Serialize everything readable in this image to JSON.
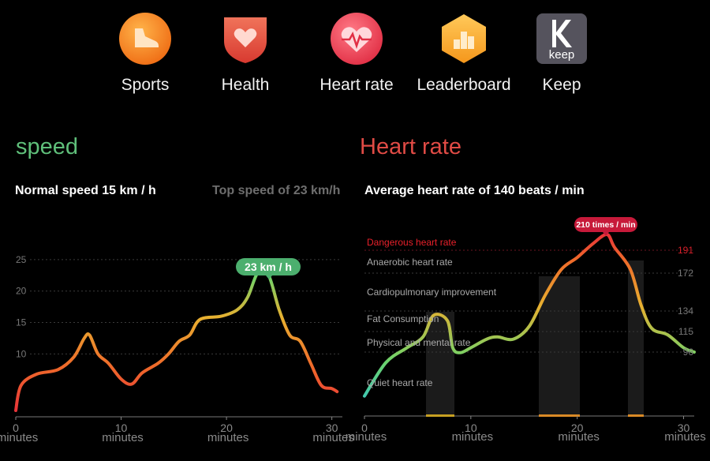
{
  "apps": [
    {
      "label": "Sports",
      "icon": "shoe-icon"
    },
    {
      "label": "Health",
      "icon": "heart-shield-icon"
    },
    {
      "label": "Heart rate",
      "icon": "heartbeat-icon"
    },
    {
      "label": "Leaderboard",
      "icon": "podium-icon"
    },
    {
      "label": "Keep",
      "icon": "keep-logo-icon",
      "logo_text": "keep"
    }
  ],
  "speed": {
    "title": "speed",
    "normal": "Normal speed 15 km / h",
    "top": "Top speed of 23 km/h",
    "badge": "23 km / h",
    "color": "#5fbf7a"
  },
  "heart": {
    "title": "Heart rate",
    "average": "Average heart rate of 140 beats / min",
    "badge": "210 times / min",
    "color": "#e04b45",
    "zones": [
      "Dangerous heart rate",
      "Anaerobic heart rate",
      "Cardiopulmonary improvement",
      "Fat Consumption",
      "Physical and mental rate",
      "Quiet heart rate"
    ]
  },
  "chart_data": [
    {
      "type": "line",
      "title": "speed",
      "x_ticks": [
        "0",
        "10",
        "20",
        "30"
      ],
      "x_unit": "minutes",
      "y_ticks": [
        "10",
        "15",
        "20",
        "25"
      ],
      "ylim": [
        0,
        27
      ],
      "xlim": [
        0,
        31
      ],
      "series": [
        {
          "values": [
            [
              0,
              1
            ],
            [
              0.5,
              5
            ],
            [
              2,
              6.8
            ],
            [
              4,
              7.5
            ],
            [
              5.5,
              9.5
            ],
            [
              6.5,
              12.5
            ],
            [
              7,
              13
            ],
            [
              7.8,
              10
            ],
            [
              8.8,
              8.5
            ],
            [
              10,
              6
            ],
            [
              11,
              5.2
            ],
            [
              12,
              7
            ],
            [
              13.5,
              8.5
            ],
            [
              14.5,
              10
            ],
            [
              15.5,
              12
            ],
            [
              16.5,
              13
            ],
            [
              17.5,
              15.5
            ],
            [
              19.5,
              16
            ],
            [
              21,
              17
            ],
            [
              22,
              19
            ],
            [
              23,
              23
            ],
            [
              24,
              22.5
            ],
            [
              25,
              17
            ],
            [
              26,
              13
            ],
            [
              27,
              12
            ],
            [
              28,
              8.5
            ],
            [
              29,
              5
            ],
            [
              30,
              4.5
            ],
            [
              30.5,
              4
            ]
          ]
        }
      ]
    },
    {
      "type": "line",
      "title": "Heart rate",
      "x_ticks": [
        "0",
        "10",
        "20",
        "30"
      ],
      "x_unit": "minutes",
      "y_ticks": [
        "96",
        "115",
        "134",
        "172",
        "191"
      ],
      "series": [
        {
          "values": [
            [
              0,
              30
            ],
            [
              2,
              80
            ],
            [
              4,
              100
            ],
            [
              5.5,
              110
            ],
            [
              6.5,
              130
            ],
            [
              7.8,
              125
            ],
            [
              8.3,
              100
            ],
            [
              9,
              95
            ],
            [
              10,
              100
            ],
            [
              11.5,
              108
            ],
            [
              12.5,
              110
            ],
            [
              14,
              108
            ],
            [
              15.5,
              120
            ],
            [
              17,
              150
            ],
            [
              18.5,
              175
            ],
            [
              20,
              185
            ],
            [
              21.5,
              200
            ],
            [
              22.8,
              212
            ],
            [
              23.5,
              195
            ],
            [
              25,
              175
            ],
            [
              26,
              140
            ],
            [
              27,
              118
            ],
            [
              28.5,
              112
            ],
            [
              30,
              100
            ],
            [
              31,
              96
            ]
          ]
        }
      ]
    }
  ]
}
